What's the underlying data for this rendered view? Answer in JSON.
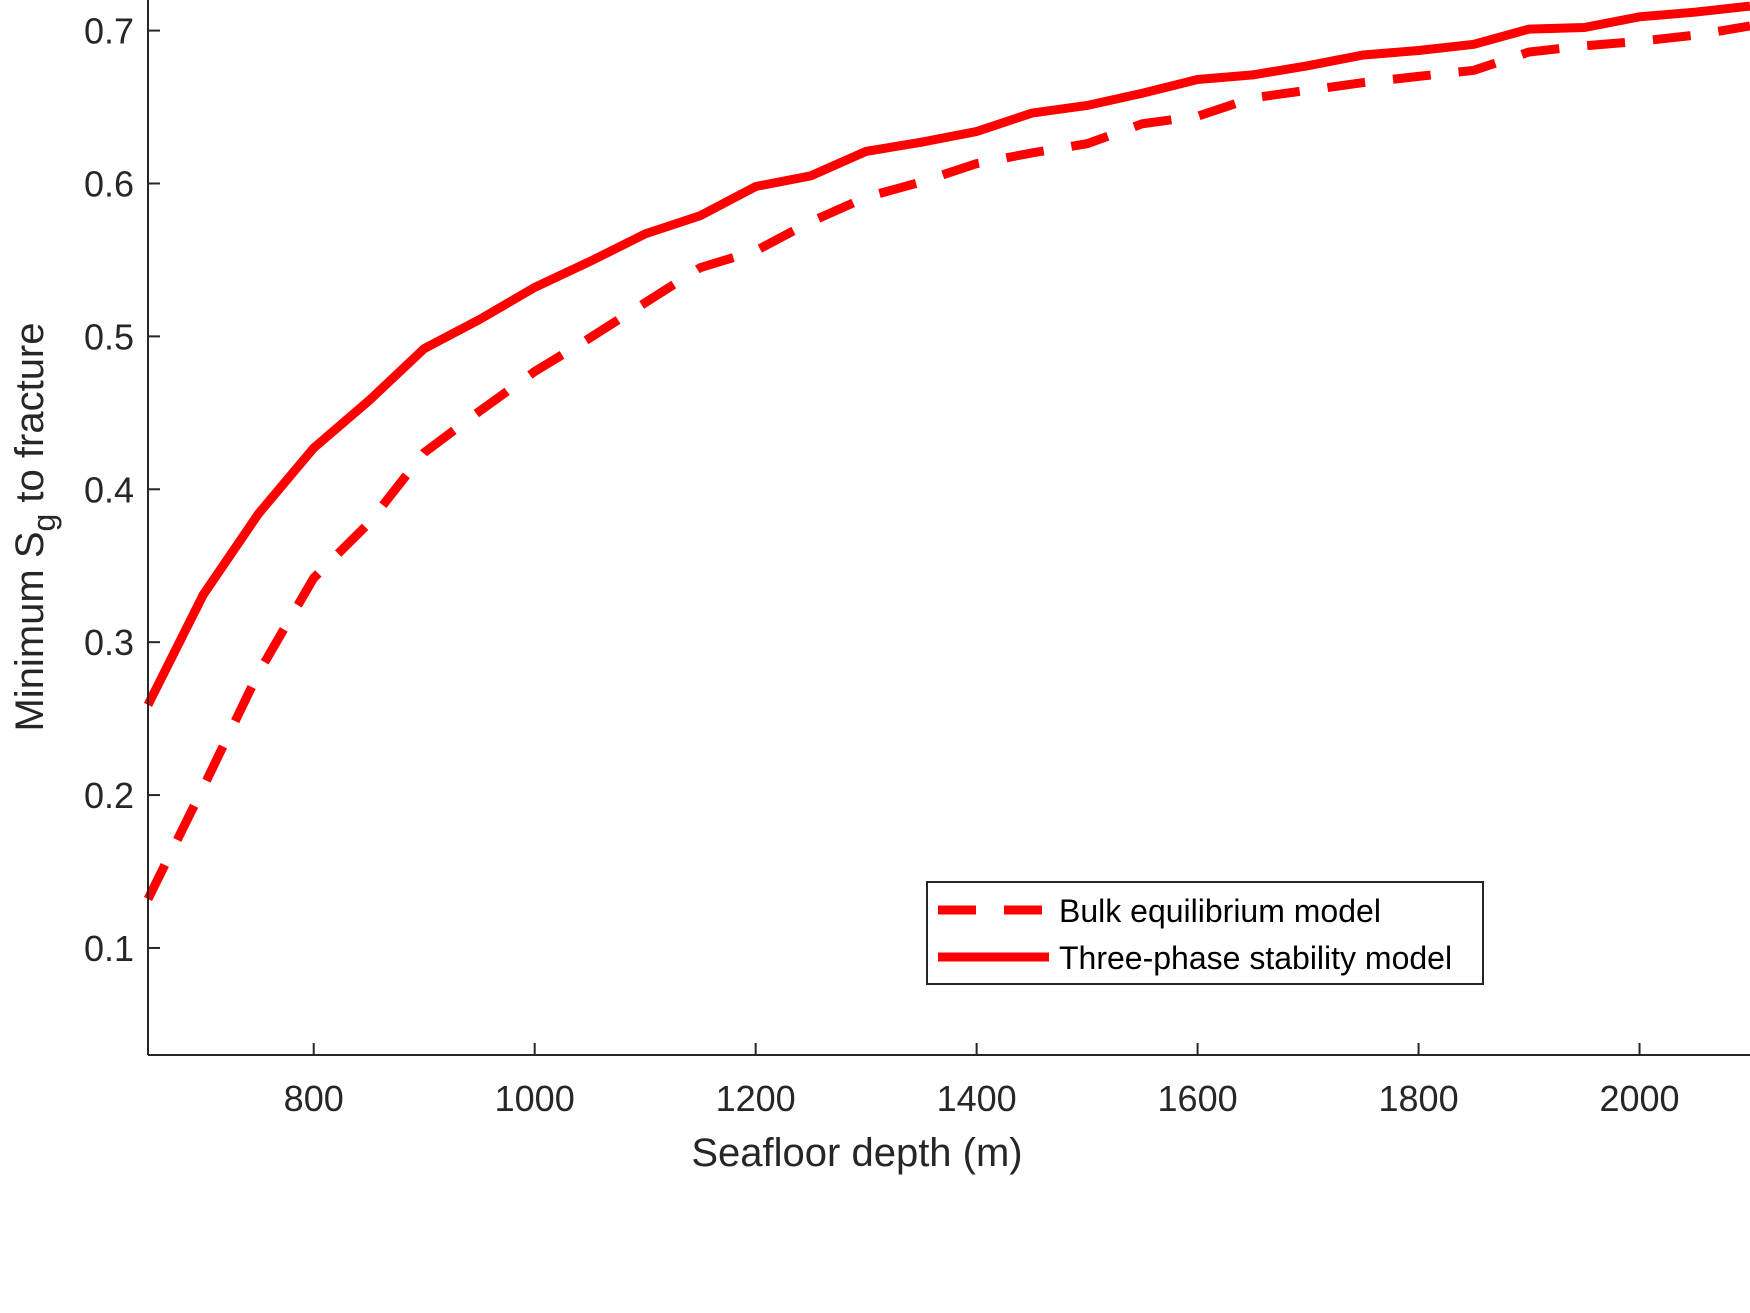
{
  "chart_data": {
    "type": "line",
    "xlabel": "Seafloor depth (m)",
    "ylabel": {
      "prefix": "Minimum S",
      "subscript": "g",
      "suffix": " to fracture"
    },
    "xlim": [
      650,
      2100
    ],
    "ylim": [
      0.03,
      0.72
    ],
    "xticks": [
      800,
      1000,
      1200,
      1400,
      1600,
      1800,
      2000
    ],
    "yticks": [
      0.1,
      0.2,
      0.3,
      0.4,
      0.5,
      0.6,
      0.7
    ],
    "x": [
      650,
      700,
      750,
      800,
      850,
      900,
      950,
      1000,
      1050,
      1100,
      1150,
      1200,
      1250,
      1300,
      1350,
      1400,
      1450,
      1500,
      1550,
      1600,
      1650,
      1700,
      1750,
      1800,
      1850,
      1900,
      1950,
      2000,
      2050,
      2100
    ],
    "series": [
      {
        "name": "Bulk equilibrium model",
        "style": "dashed",
        "color": "#ff0000",
        "values": [
          0.132,
          0.205,
          0.28,
          0.342,
          0.378,
          0.424,
          0.451,
          0.477,
          0.499,
          0.522,
          0.545,
          0.556,
          0.575,
          0.591,
          0.601,
          0.613,
          0.62,
          0.626,
          0.639,
          0.644,
          0.656,
          0.661,
          0.666,
          0.67,
          0.674,
          0.686,
          0.69,
          0.693,
          0.697,
          0.703
        ]
      },
      {
        "name": "Three-phase stability model",
        "style": "solid",
        "color": "#ff0000",
        "values": [
          0.259,
          0.331,
          0.384,
          0.427,
          0.458,
          0.492,
          0.511,
          0.532,
          0.549,
          0.567,
          0.579,
          0.598,
          0.605,
          0.621,
          0.627,
          0.634,
          0.646,
          0.651,
          0.659,
          0.668,
          0.671,
          0.677,
          0.684,
          0.687,
          0.691,
          0.701,
          0.702,
          0.709,
          0.712,
          0.716
        ]
      }
    ],
    "grid": false,
    "legend_position": "bottom-right"
  }
}
